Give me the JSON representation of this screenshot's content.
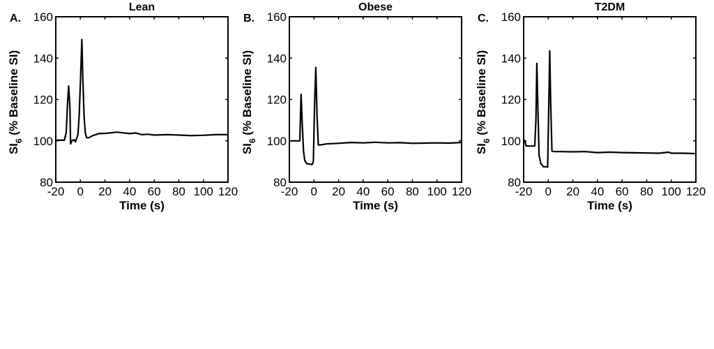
{
  "chart_data": [
    {
      "type": "line",
      "panel_label": "A.",
      "title": "Lean",
      "xlabel": "Time (s)",
      "ylabel_main": "SI",
      "ylabel_sub": "6",
      "ylabel_rest": " (% Baseline SI)",
      "xlim": [
        -20,
        120
      ],
      "ylim": [
        80,
        160
      ],
      "xticks": [
        -20,
        0,
        20,
        40,
        60,
        80,
        100,
        120
      ],
      "yticks": [
        80,
        100,
        120,
        140,
        160
      ],
      "grid": false,
      "color": "#000000",
      "x": [
        -20,
        -13,
        -11.5,
        -10.5,
        -9.5,
        -8.5,
        -8,
        -7,
        -5,
        -4,
        -2,
        -1,
        0,
        1.2,
        2,
        3,
        4,
        5,
        7,
        10,
        15,
        20,
        30,
        40,
        45,
        50,
        55,
        60,
        70,
        80,
        90,
        100,
        110,
        120
      ],
      "y": [
        100.3,
        100.3,
        104,
        118,
        126.5,
        116,
        98.5,
        100,
        100.5,
        99.5,
        103,
        112,
        128,
        149,
        130,
        112,
        104,
        101.5,
        101.5,
        102.5,
        103.5,
        103.6,
        104.2,
        103.5,
        103.8,
        103,
        103.2,
        102.8,
        103,
        102.8,
        102.5,
        102.7,
        103,
        103
      ]
    },
    {
      "type": "line",
      "panel_label": "B.",
      "title": "Obese",
      "xlabel": "Time (s)",
      "ylabel_main": "SI",
      "ylabel_sub": "6",
      "ylabel_rest": " (% Baseline SI)",
      "xlim": [
        -20,
        120
      ],
      "ylim": [
        80,
        160
      ],
      "xticks": [
        -20,
        0,
        20,
        40,
        60,
        80,
        100,
        120
      ],
      "yticks": [
        80,
        100,
        120,
        140,
        160
      ],
      "grid": false,
      "color": "#000000",
      "x": [
        -20,
        -11.5,
        -10.5,
        -9.5,
        -8.5,
        -7.5,
        -6,
        -4,
        -1.5,
        -0.5,
        0.5,
        1.5,
        2.5,
        3.5,
        5,
        10,
        20,
        30,
        40,
        50,
        60,
        70,
        80,
        90,
        100,
        110,
        120
      ],
      "y": [
        100,
        100,
        122.5,
        108,
        95,
        90.5,
        89,
        88.8,
        88.5,
        90,
        118,
        135.5,
        112,
        98,
        98,
        98.5,
        98.8,
        99.2,
        99,
        99.3,
        99,
        99.1,
        98.8,
        98.9,
        99,
        98.9,
        99.2
      ]
    },
    {
      "type": "line",
      "panel_label": "C.",
      "title": "T2DM",
      "xlabel": "Time (s)",
      "ylabel_main": "SI",
      "ylabel_sub": "6",
      "ylabel_rest": " (% Baseline SI)",
      "xlim": [
        -20,
        120
      ],
      "ylim": [
        80,
        160
      ],
      "xticks": [
        -20,
        0,
        20,
        40,
        60,
        80,
        100,
        120
      ],
      "yticks": [
        80,
        100,
        120,
        140,
        160
      ],
      "grid": false,
      "color": "#000000",
      "x": [
        -20,
        -19,
        -18,
        -11,
        -10,
        -9.3,
        -8.5,
        -7.5,
        -6,
        -4,
        -1,
        -0.5,
        0.3,
        1.2,
        2,
        3,
        5,
        10,
        20,
        30,
        40,
        50,
        60,
        70,
        80,
        90,
        98,
        100,
        110,
        120
      ],
      "y": [
        100.5,
        100,
        97.5,
        97.5,
        110,
        137.5,
        118,
        93,
        89,
        87.5,
        87.5,
        87.2,
        112,
        143.5,
        118,
        95,
        94.8,
        94.8,
        94.7,
        94.8,
        94.3,
        94.5,
        94.3,
        94.2,
        94.1,
        94,
        94.5,
        94,
        94,
        93.8
      ]
    }
  ]
}
